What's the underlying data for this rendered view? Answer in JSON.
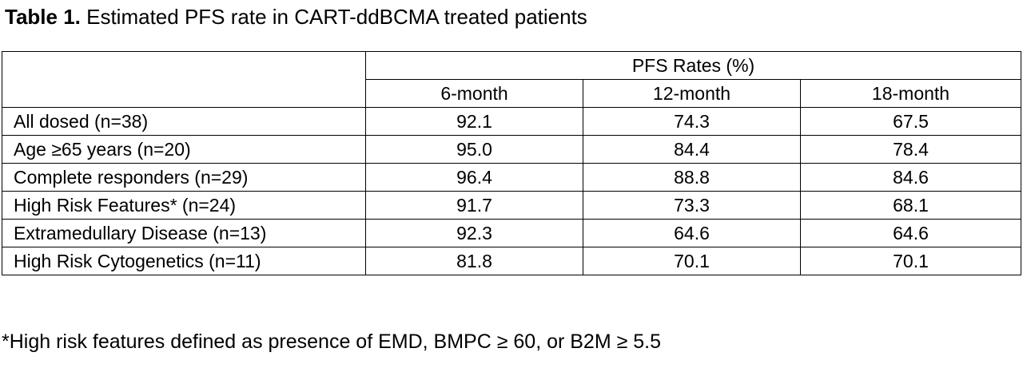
{
  "caption": {
    "label": "Table 1.",
    "text": " Estimated PFS rate in CART-ddBCMA treated patients"
  },
  "table": {
    "group_header": "PFS Rates (%)",
    "columns": [
      "6-month",
      "12-month",
      "18-month"
    ],
    "rows": [
      {
        "label": "All dosed (n=38)",
        "values": [
          "92.1",
          "74.3",
          "67.5"
        ]
      },
      {
        "label": "Age ≥65 years (n=20)",
        "values": [
          "95.0",
          "84.4",
          "78.4"
        ]
      },
      {
        "label": "Complete responders (n=29)",
        "values": [
          "96.4",
          "88.8",
          "84.6"
        ]
      },
      {
        "label": "High Risk Features* (n=24)",
        "values": [
          "91.7",
          "73.3",
          "68.1"
        ]
      },
      {
        "label": "Extramedullary Disease (n=13)",
        "values": [
          "92.3",
          "64.6",
          "64.6"
        ]
      },
      {
        "label": "High Risk Cytogenetics (n=11)",
        "values": [
          "81.8",
          "70.1",
          "70.1"
        ]
      }
    ]
  },
  "footnote": "*High risk features defined as presence of EMD, BMPC ≥ 60, or B2M ≥ 5.5"
}
